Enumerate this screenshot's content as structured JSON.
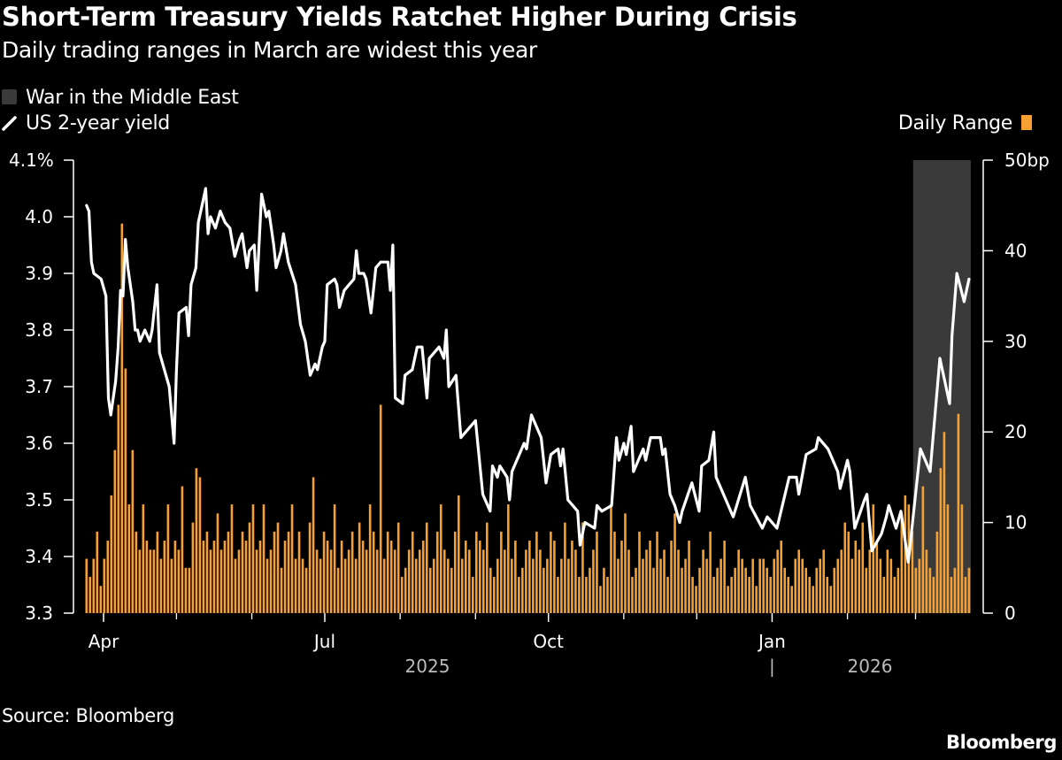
{
  "header": {
    "title": "Short-Term Treasury Yields Ratchet Higher During Crisis",
    "subtitle": "Daily trading ranges in March are widest this year"
  },
  "footer": {
    "source": "Source: Bloomberg",
    "brand": "Bloomberg"
  },
  "colors": {
    "background": "#000000",
    "line": "#ffffff",
    "bars": "#f5a031",
    "shade": "#3a3a3a",
    "axis": "#ffffff",
    "year_label": "#bbbbbb"
  },
  "chart_data": {
    "type": "line+bar",
    "title": "Short-Term Treasury Yields Ratchet Higher During Crisis",
    "subtitle": "Daily trading ranges in March are widest this year",
    "legend": {
      "placement": "top-left",
      "items": [
        {
          "label": "War in the Middle East",
          "kind": "shaded-region"
        },
        {
          "label": "US 2-year yield",
          "kind": "line"
        },
        {
          "label": "Daily Range",
          "kind": "bar",
          "placement": "top-right"
        }
      ]
    },
    "x_axis": {
      "type": "date",
      "tick_labels": [
        {
          "label": "Apr",
          "date": "2025-04-01"
        },
        {
          "label": "Jul",
          "date": "2025-07-01"
        },
        {
          "label": "Oct",
          "date": "2025-10-01"
        },
        {
          "label": "Jan",
          "date": "2026-01-01"
        }
      ],
      "minor_ticks": [
        "2025-05-01",
        "2025-06-01",
        "2025-08-01",
        "2025-09-01",
        "2025-11-01",
        "2025-12-01",
        "2026-02-01",
        "2026-03-01"
      ],
      "year_labels": [
        {
          "label": "2025",
          "center": "2025-08-15"
        },
        {
          "label": "2026",
          "center": "2026-02-15"
        }
      ],
      "year_separator": {
        "label": "|",
        "date": "2026-01-01"
      }
    },
    "y_left": {
      "unit": "%",
      "range": [
        3.3,
        4.1
      ],
      "tick_labels": [
        "3.3",
        "3.4",
        "3.5",
        "3.6",
        "3.7",
        "3.8",
        "3.9",
        "4.0",
        "4.1%"
      ],
      "ticks": [
        3.3,
        3.4,
        3.5,
        3.6,
        3.7,
        3.8,
        3.9,
        4.0,
        4.1
      ]
    },
    "y_right": {
      "unit": "bp",
      "range": [
        0,
        50
      ],
      "tick_labels": [
        "0",
        "10",
        "20",
        "30",
        "40",
        "50bp"
      ],
      "ticks": [
        0,
        10,
        20,
        30,
        40,
        50
      ]
    },
    "grid": false,
    "shaded_region": {
      "name": "War in the Middle East",
      "start": "2026-02-28",
      "end": "2026-03-23"
    },
    "series": [
      {
        "name": "US 2-year yield",
        "type": "line",
        "axis": "left",
        "points": [
          [
            "2025-03-25",
            4.02
          ],
          [
            "2025-03-26",
            4.01
          ],
          [
            "2025-03-27",
            3.92
          ],
          [
            "2025-03-28",
            3.9
          ],
          [
            "2025-03-31",
            3.89
          ],
          [
            "2025-04-02",
            3.86
          ],
          [
            "2025-04-03",
            3.68
          ],
          [
            "2025-04-04",
            3.65
          ],
          [
            "2025-04-06",
            3.71
          ],
          [
            "2025-04-07",
            3.77
          ],
          [
            "2025-04-08",
            3.87
          ],
          [
            "2025-04-09",
            3.86
          ],
          [
            "2025-04-10",
            3.96
          ],
          [
            "2025-04-11",
            3.91
          ],
          [
            "2025-04-13",
            3.85
          ],
          [
            "2025-04-14",
            3.8
          ],
          [
            "2025-04-15",
            3.8
          ],
          [
            "2025-04-16",
            3.78
          ],
          [
            "2025-04-18",
            3.8
          ],
          [
            "2025-04-20",
            3.78
          ],
          [
            "2025-04-21",
            3.8
          ],
          [
            "2025-04-23",
            3.88
          ],
          [
            "2025-04-24",
            3.76
          ],
          [
            "2025-04-26",
            3.73
          ],
          [
            "2025-04-28",
            3.7
          ],
          [
            "2025-04-30",
            3.6
          ],
          [
            "2025-05-01",
            3.73
          ],
          [
            "2025-05-02",
            3.83
          ],
          [
            "2025-05-05",
            3.84
          ],
          [
            "2025-05-06",
            3.79
          ],
          [
            "2025-05-07",
            3.88
          ],
          [
            "2025-05-09",
            3.91
          ],
          [
            "2025-05-10",
            3.99
          ],
          [
            "2025-05-11",
            4.01
          ],
          [
            "2025-05-13",
            4.05
          ],
          [
            "2025-05-14",
            3.97
          ],
          [
            "2025-05-15",
            4.0
          ],
          [
            "2025-05-17",
            3.98
          ],
          [
            "2025-05-19",
            4.01
          ],
          [
            "2025-05-21",
            3.99
          ],
          [
            "2025-05-23",
            3.98
          ],
          [
            "2025-05-25",
            3.93
          ],
          [
            "2025-05-27",
            3.96
          ],
          [
            "2025-05-28",
            3.97
          ],
          [
            "2025-05-30",
            3.91
          ],
          [
            "2025-05-31",
            3.94
          ],
          [
            "2025-06-02",
            3.95
          ],
          [
            "2025-06-03",
            3.87
          ],
          [
            "2025-06-05",
            4.04
          ],
          [
            "2025-06-06",
            4.02
          ],
          [
            "2025-06-07",
            4.0
          ],
          [
            "2025-06-08",
            4.01
          ],
          [
            "2025-06-10",
            3.95
          ],
          [
            "2025-06-11",
            3.91
          ],
          [
            "2025-06-13",
            3.94
          ],
          [
            "2025-06-14",
            3.97
          ],
          [
            "2025-06-16",
            3.92
          ],
          [
            "2025-06-19",
            3.88
          ],
          [
            "2025-06-21",
            3.81
          ],
          [
            "2025-06-23",
            3.78
          ],
          [
            "2025-06-25",
            3.72
          ],
          [
            "2025-06-27",
            3.74
          ],
          [
            "2025-06-28",
            3.73
          ],
          [
            "2025-06-30",
            3.77
          ],
          [
            "2025-07-01",
            3.78
          ],
          [
            "2025-07-02",
            3.88
          ],
          [
            "2025-07-05",
            3.89
          ],
          [
            "2025-07-06",
            3.88
          ],
          [
            "2025-07-07",
            3.84
          ],
          [
            "2025-07-09",
            3.87
          ],
          [
            "2025-07-11",
            3.88
          ],
          [
            "2025-07-13",
            3.89
          ],
          [
            "2025-07-14",
            3.94
          ],
          [
            "2025-07-15",
            3.9
          ],
          [
            "2025-07-17",
            3.9
          ],
          [
            "2025-07-18",
            3.89
          ],
          [
            "2025-07-20",
            3.83
          ],
          [
            "2025-07-22",
            3.91
          ],
          [
            "2025-07-24",
            3.92
          ],
          [
            "2025-07-27",
            3.92
          ],
          [
            "2025-07-28",
            3.87
          ],
          [
            "2025-07-29",
            3.95
          ],
          [
            "2025-07-30",
            3.68
          ],
          [
            "2025-08-02",
            3.67
          ],
          [
            "2025-08-03",
            3.72
          ],
          [
            "2025-08-06",
            3.73
          ],
          [
            "2025-08-08",
            3.77
          ],
          [
            "2025-08-10",
            3.77
          ],
          [
            "2025-08-12",
            3.68
          ],
          [
            "2025-08-13",
            3.75
          ],
          [
            "2025-08-17",
            3.77
          ],
          [
            "2025-08-19",
            3.75
          ],
          [
            "2025-08-20",
            3.8
          ],
          [
            "2025-08-21",
            3.7
          ],
          [
            "2025-08-24",
            3.72
          ],
          [
            "2025-08-26",
            3.61
          ],
          [
            "2025-08-28",
            3.62
          ],
          [
            "2025-09-01",
            3.64
          ],
          [
            "2025-09-04",
            3.51
          ],
          [
            "2025-09-07",
            3.48
          ],
          [
            "2025-09-08",
            3.56
          ],
          [
            "2025-09-10",
            3.54
          ],
          [
            "2025-09-11",
            3.56
          ],
          [
            "2025-09-14",
            3.54
          ],
          [
            "2025-09-15",
            3.5
          ],
          [
            "2025-09-16",
            3.55
          ],
          [
            "2025-09-21",
            3.6
          ],
          [
            "2025-09-22",
            3.59
          ],
          [
            "2025-09-24",
            3.65
          ],
          [
            "2025-09-28",
            3.61
          ],
          [
            "2025-09-30",
            3.53
          ],
          [
            "2025-10-02",
            3.58
          ],
          [
            "2025-10-05",
            3.59
          ],
          [
            "2025-10-06",
            3.56
          ],
          [
            "2025-10-07",
            3.59
          ],
          [
            "2025-10-09",
            3.5
          ],
          [
            "2025-10-13",
            3.48
          ],
          [
            "2025-10-14",
            3.42
          ],
          [
            "2025-10-16",
            3.46
          ],
          [
            "2025-10-20",
            3.45
          ],
          [
            "2025-10-21",
            3.49
          ],
          [
            "2025-10-23",
            3.48
          ],
          [
            "2025-10-27",
            3.49
          ],
          [
            "2025-10-29",
            3.61
          ],
          [
            "2025-10-30",
            3.57
          ],
          [
            "2025-11-01",
            3.6
          ],
          [
            "2025-11-02",
            3.58
          ],
          [
            "2025-11-04",
            3.63
          ],
          [
            "2025-11-05",
            3.55
          ],
          [
            "2025-11-09",
            3.59
          ],
          [
            "2025-11-10",
            3.57
          ],
          [
            "2025-11-12",
            3.61
          ],
          [
            "2025-11-16",
            3.61
          ],
          [
            "2025-11-17",
            3.58
          ],
          [
            "2025-11-18",
            3.59
          ],
          [
            "2025-11-20",
            3.51
          ],
          [
            "2025-11-22",
            3.49
          ],
          [
            "2025-11-24",
            3.46
          ],
          [
            "2025-11-25",
            3.48
          ],
          [
            "2025-11-29",
            3.53
          ],
          [
            "2025-12-02",
            3.48
          ],
          [
            "2025-12-03",
            3.56
          ],
          [
            "2025-12-06",
            3.57
          ],
          [
            "2025-12-08",
            3.62
          ],
          [
            "2025-12-09",
            3.54
          ],
          [
            "2025-12-12",
            3.51
          ],
          [
            "2025-12-16",
            3.47
          ],
          [
            "2025-12-21",
            3.54
          ],
          [
            "2025-12-23",
            3.49
          ],
          [
            "2025-12-28",
            3.45
          ],
          [
            "2025-12-30",
            3.47
          ],
          [
            "2026-01-03",
            3.45
          ],
          [
            "2026-01-08",
            3.54
          ],
          [
            "2026-01-11",
            3.54
          ],
          [
            "2026-01-12",
            3.51
          ],
          [
            "2026-01-15",
            3.58
          ],
          [
            "2026-01-19",
            3.59
          ],
          [
            "2026-01-20",
            3.61
          ],
          [
            "2026-01-24",
            3.59
          ],
          [
            "2026-01-28",
            3.55
          ],
          [
            "2026-01-29",
            3.52
          ],
          [
            "2026-02-01",
            3.57
          ],
          [
            "2026-02-02",
            3.55
          ],
          [
            "2026-02-04",
            3.45
          ],
          [
            "2026-02-08",
            3.5
          ],
          [
            "2026-02-09",
            3.51
          ],
          [
            "2026-02-11",
            3.41
          ],
          [
            "2026-02-15",
            3.44
          ],
          [
            "2026-02-17",
            3.47
          ],
          [
            "2026-02-18",
            3.49
          ],
          [
            "2026-02-21",
            3.45
          ],
          [
            "2026-02-23",
            3.48
          ],
          [
            "2026-02-26",
            3.39
          ],
          [
            "2026-03-03",
            3.59
          ],
          [
            "2026-03-07",
            3.55
          ],
          [
            "2026-03-11",
            3.75
          ],
          [
            "2026-03-15",
            3.67
          ],
          [
            "2026-03-16",
            3.79
          ],
          [
            "2026-03-18",
            3.9
          ],
          [
            "2026-03-21",
            3.85
          ],
          [
            "2026-03-23",
            3.89
          ]
        ]
      },
      {
        "name": "Daily Range",
        "type": "bar",
        "axis": "right",
        "unit": "bp",
        "values": [
          6,
          4,
          6,
          9,
          3,
          6,
          8,
          13,
          18,
          23,
          43,
          27,
          12,
          18,
          9,
          7,
          12,
          8,
          7,
          7,
          9,
          6,
          8,
          12,
          6,
          8,
          7,
          14,
          5,
          5,
          10,
          16,
          15,
          8,
          9,
          7,
          8,
          11,
          7,
          8,
          9,
          12,
          6,
          7,
          9,
          8,
          10,
          12,
          7,
          8,
          12,
          6,
          7,
          9,
          10,
          5,
          8,
          9,
          12,
          6,
          9,
          6,
          5,
          10,
          15,
          7,
          6,
          9,
          8,
          7,
          12,
          5,
          8,
          6,
          7,
          9,
          6,
          10,
          8,
          7,
          12,
          9,
          7,
          23,
          6,
          9,
          8,
          7,
          10,
          4,
          5,
          7,
          9,
          6,
          7,
          8,
          10,
          5,
          6,
          9,
          12,
          7,
          6,
          5,
          9,
          13,
          6,
          8,
          7,
          4,
          9,
          8,
          7,
          10,
          5,
          4,
          6,
          9,
          7,
          12,
          6,
          8,
          4,
          5,
          7,
          8,
          6,
          9,
          7,
          5,
          6,
          9,
          8,
          4,
          6,
          10,
          6,
          8,
          7,
          4,
          10,
          4,
          5,
          7,
          9,
          3,
          5,
          4,
          12,
          9,
          6,
          8,
          11,
          7,
          4,
          5,
          9,
          6,
          7,
          8,
          5,
          9,
          6,
          7,
          4,
          8,
          11,
          7,
          5,
          6,
          8,
          4,
          3,
          5,
          7,
          6,
          9,
          4,
          5,
          6,
          8,
          3,
          4,
          5,
          7,
          6,
          5,
          4,
          6,
          3,
          6,
          6,
          5,
          4,
          6,
          7,
          8,
          5,
          4,
          3,
          6,
          7,
          6,
          5,
          4,
          3,
          5,
          6,
          7,
          4,
          3,
          5,
          6,
          7,
          10,
          9,
          6,
          8,
          7,
          10,
          5,
          7,
          12,
          8,
          6,
          4,
          7,
          6,
          4,
          5,
          11,
          13,
          12,
          9,
          5,
          6,
          14,
          7,
          5,
          4,
          9,
          16,
          20,
          12,
          4,
          5,
          22,
          12,
          4,
          5
        ]
      }
    ]
  }
}
